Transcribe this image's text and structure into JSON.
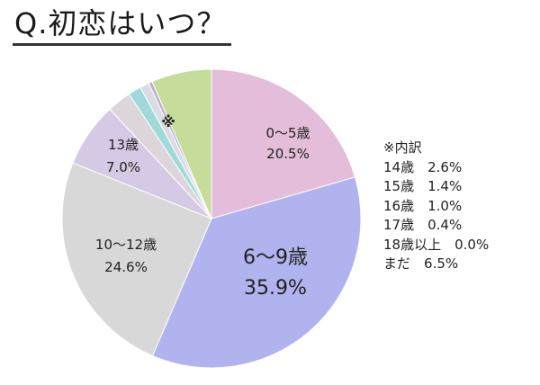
{
  "chart_data": {
    "type": "pie",
    "title": "Q.初恋はいつ？",
    "start_angle_deg": 0,
    "direction": "clockwise",
    "slices": [
      {
        "label": "0～5歳",
        "value": 20.5,
        "value_text": "20.5%",
        "color": "#e3bdd9"
      },
      {
        "label": "6～9歳",
        "value": 35.9,
        "value_text": "35.9%",
        "color": "#b1b3ee"
      },
      {
        "label": "10～12歳",
        "value": 24.6,
        "value_text": "24.6%",
        "color": "#d8d8d8"
      },
      {
        "label": "13歳",
        "value": 7.0,
        "value_text": "7.0%",
        "color": "#d6c9e6"
      },
      {
        "label": "14歳",
        "value": 2.6,
        "value_text": "2.6%",
        "color": "#dcd6db"
      },
      {
        "label": "15歳",
        "value": 1.4,
        "value_text": "1.4%",
        "color": "#9fd9d9"
      },
      {
        "label": "16歳",
        "value": 1.0,
        "value_text": "1.0%",
        "color": "#d9dde3"
      },
      {
        "label": "17歳",
        "value": 0.4,
        "value_text": "0.4%",
        "color": "#b9b0cf"
      },
      {
        "label": "18歳以上",
        "value": 0.0,
        "value_text": "0.0%",
        "color": "#c9c9c9"
      },
      {
        "label": "まだ",
        "value": 6.5,
        "value_text": "6.5%",
        "color": "#c5dc9b"
      }
    ],
    "small_slices_marker": "※"
  },
  "breakdown": {
    "heading": "※内訳",
    "rows": [
      {
        "label": "14歳",
        "value": "2.6%"
      },
      {
        "label": "15歳",
        "value": "1.4%"
      },
      {
        "label": "16歳",
        "value": "1.0%"
      },
      {
        "label": "17歳",
        "value": "0.4%"
      },
      {
        "label": "18歳以上",
        "value": "0.0%"
      },
      {
        "label": "まだ",
        "value": "6.5%"
      }
    ]
  }
}
